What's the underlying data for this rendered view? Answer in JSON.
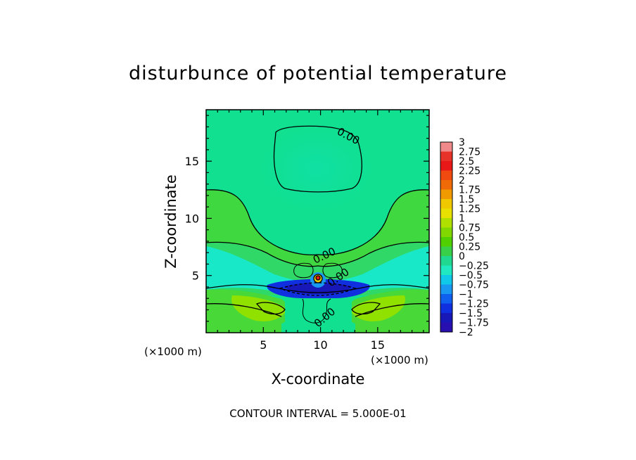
{
  "chart_data": {
    "type": "heatmap",
    "title": "disturbunce of potential temperature",
    "xlabel": "X-coordinate",
    "ylabel": "Z-coordinate",
    "x_unit": "(×1000 m)",
    "z_unit": "(×1000 m)",
    "xlim": [
      0,
      19.5
    ],
    "ylim": [
      0,
      19.5
    ],
    "x_ticks": [
      5,
      10,
      15
    ],
    "z_ticks": [
      5,
      10,
      15
    ],
    "footer": "CONTOUR INTERVAL = 5.000E-01",
    "contour_labels": [
      "0.00",
      "0.00",
      "0.00",
      "0.00"
    ],
    "colorbar": {
      "levels": [
        "3",
        "2.75",
        "2.5",
        "2.25",
        "2",
        "1.75",
        "1.5",
        "1.25",
        "1",
        "0.75",
        "0.5",
        "0.25",
        "0",
        "−0.25",
        "−0.5",
        "−0.75",
        "−1",
        "−1.25",
        "−1.5",
        "−1.75",
        "−2"
      ],
      "colors": [
        "#f08a8a",
        "#e63228",
        "#e81818",
        "#f04a10",
        "#f06a08",
        "#f09a00",
        "#f0c800",
        "#e8e000",
        "#b0e000",
        "#80d800",
        "#50d000",
        "#38d048",
        "#20d890",
        "#20e8c0",
        "#10c8e8",
        "#1898f0",
        "#1060f0",
        "#1030e0",
        "#1818b8",
        "#2810b0",
        "#6010b0"
      ]
    },
    "fields": {
      "background": "#10e090",
      "upper_green_band": "#40d840",
      "cyan_layer": "#18e8c8",
      "blue_core": "#1030e0",
      "dark_blue_core": "#1818b8"
    }
  }
}
